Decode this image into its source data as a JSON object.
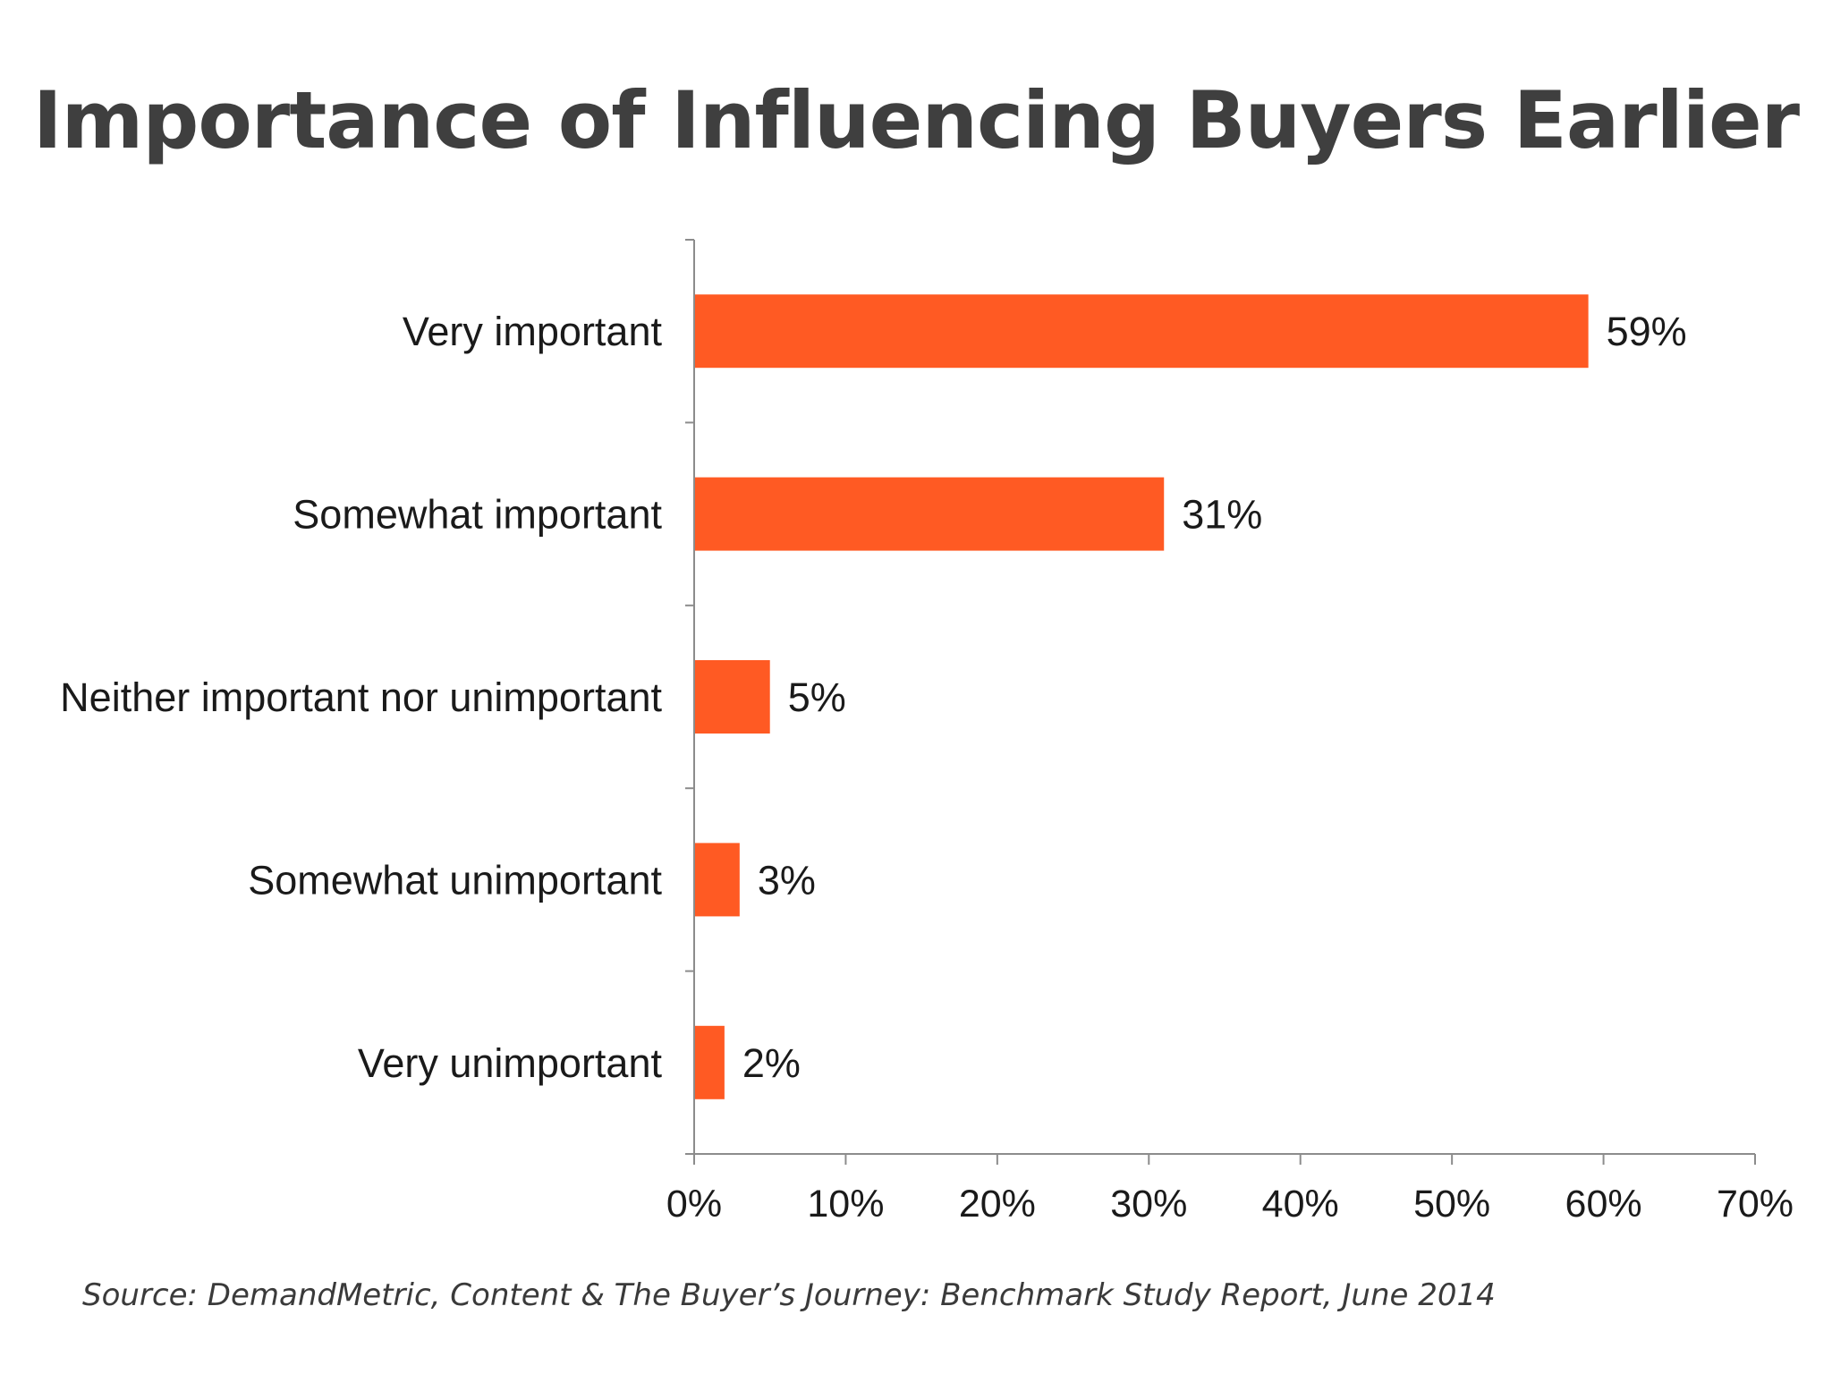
{
  "chart_data": {
    "type": "bar",
    "orientation": "horizontal",
    "title": "Importance of Influencing Buyers Earlier",
    "categories": [
      "Very important",
      "Somewhat important",
      "Neither important nor unimportant",
      "Somewhat unimportant",
      "Very unimportant"
    ],
    "values": [
      59,
      31,
      5,
      3,
      2
    ],
    "value_labels": [
      "59%",
      "31%",
      "5%",
      "3%",
      "2%"
    ],
    "xlim": [
      0,
      70
    ],
    "x_ticks": [
      0,
      10,
      20,
      30,
      40,
      50,
      60,
      70
    ],
    "x_tick_labels": [
      "0%",
      "10%",
      "20%",
      "30%",
      "40%",
      "50%",
      "60%",
      "70%"
    ],
    "xlabel": "",
    "ylabel": "",
    "grid": false,
    "legend": "none",
    "bar_color": "#FF5A23"
  },
  "source": "Source: DemandMetric, Content & The Buyer’s Journey: Benchmark Study Report, June 2014"
}
